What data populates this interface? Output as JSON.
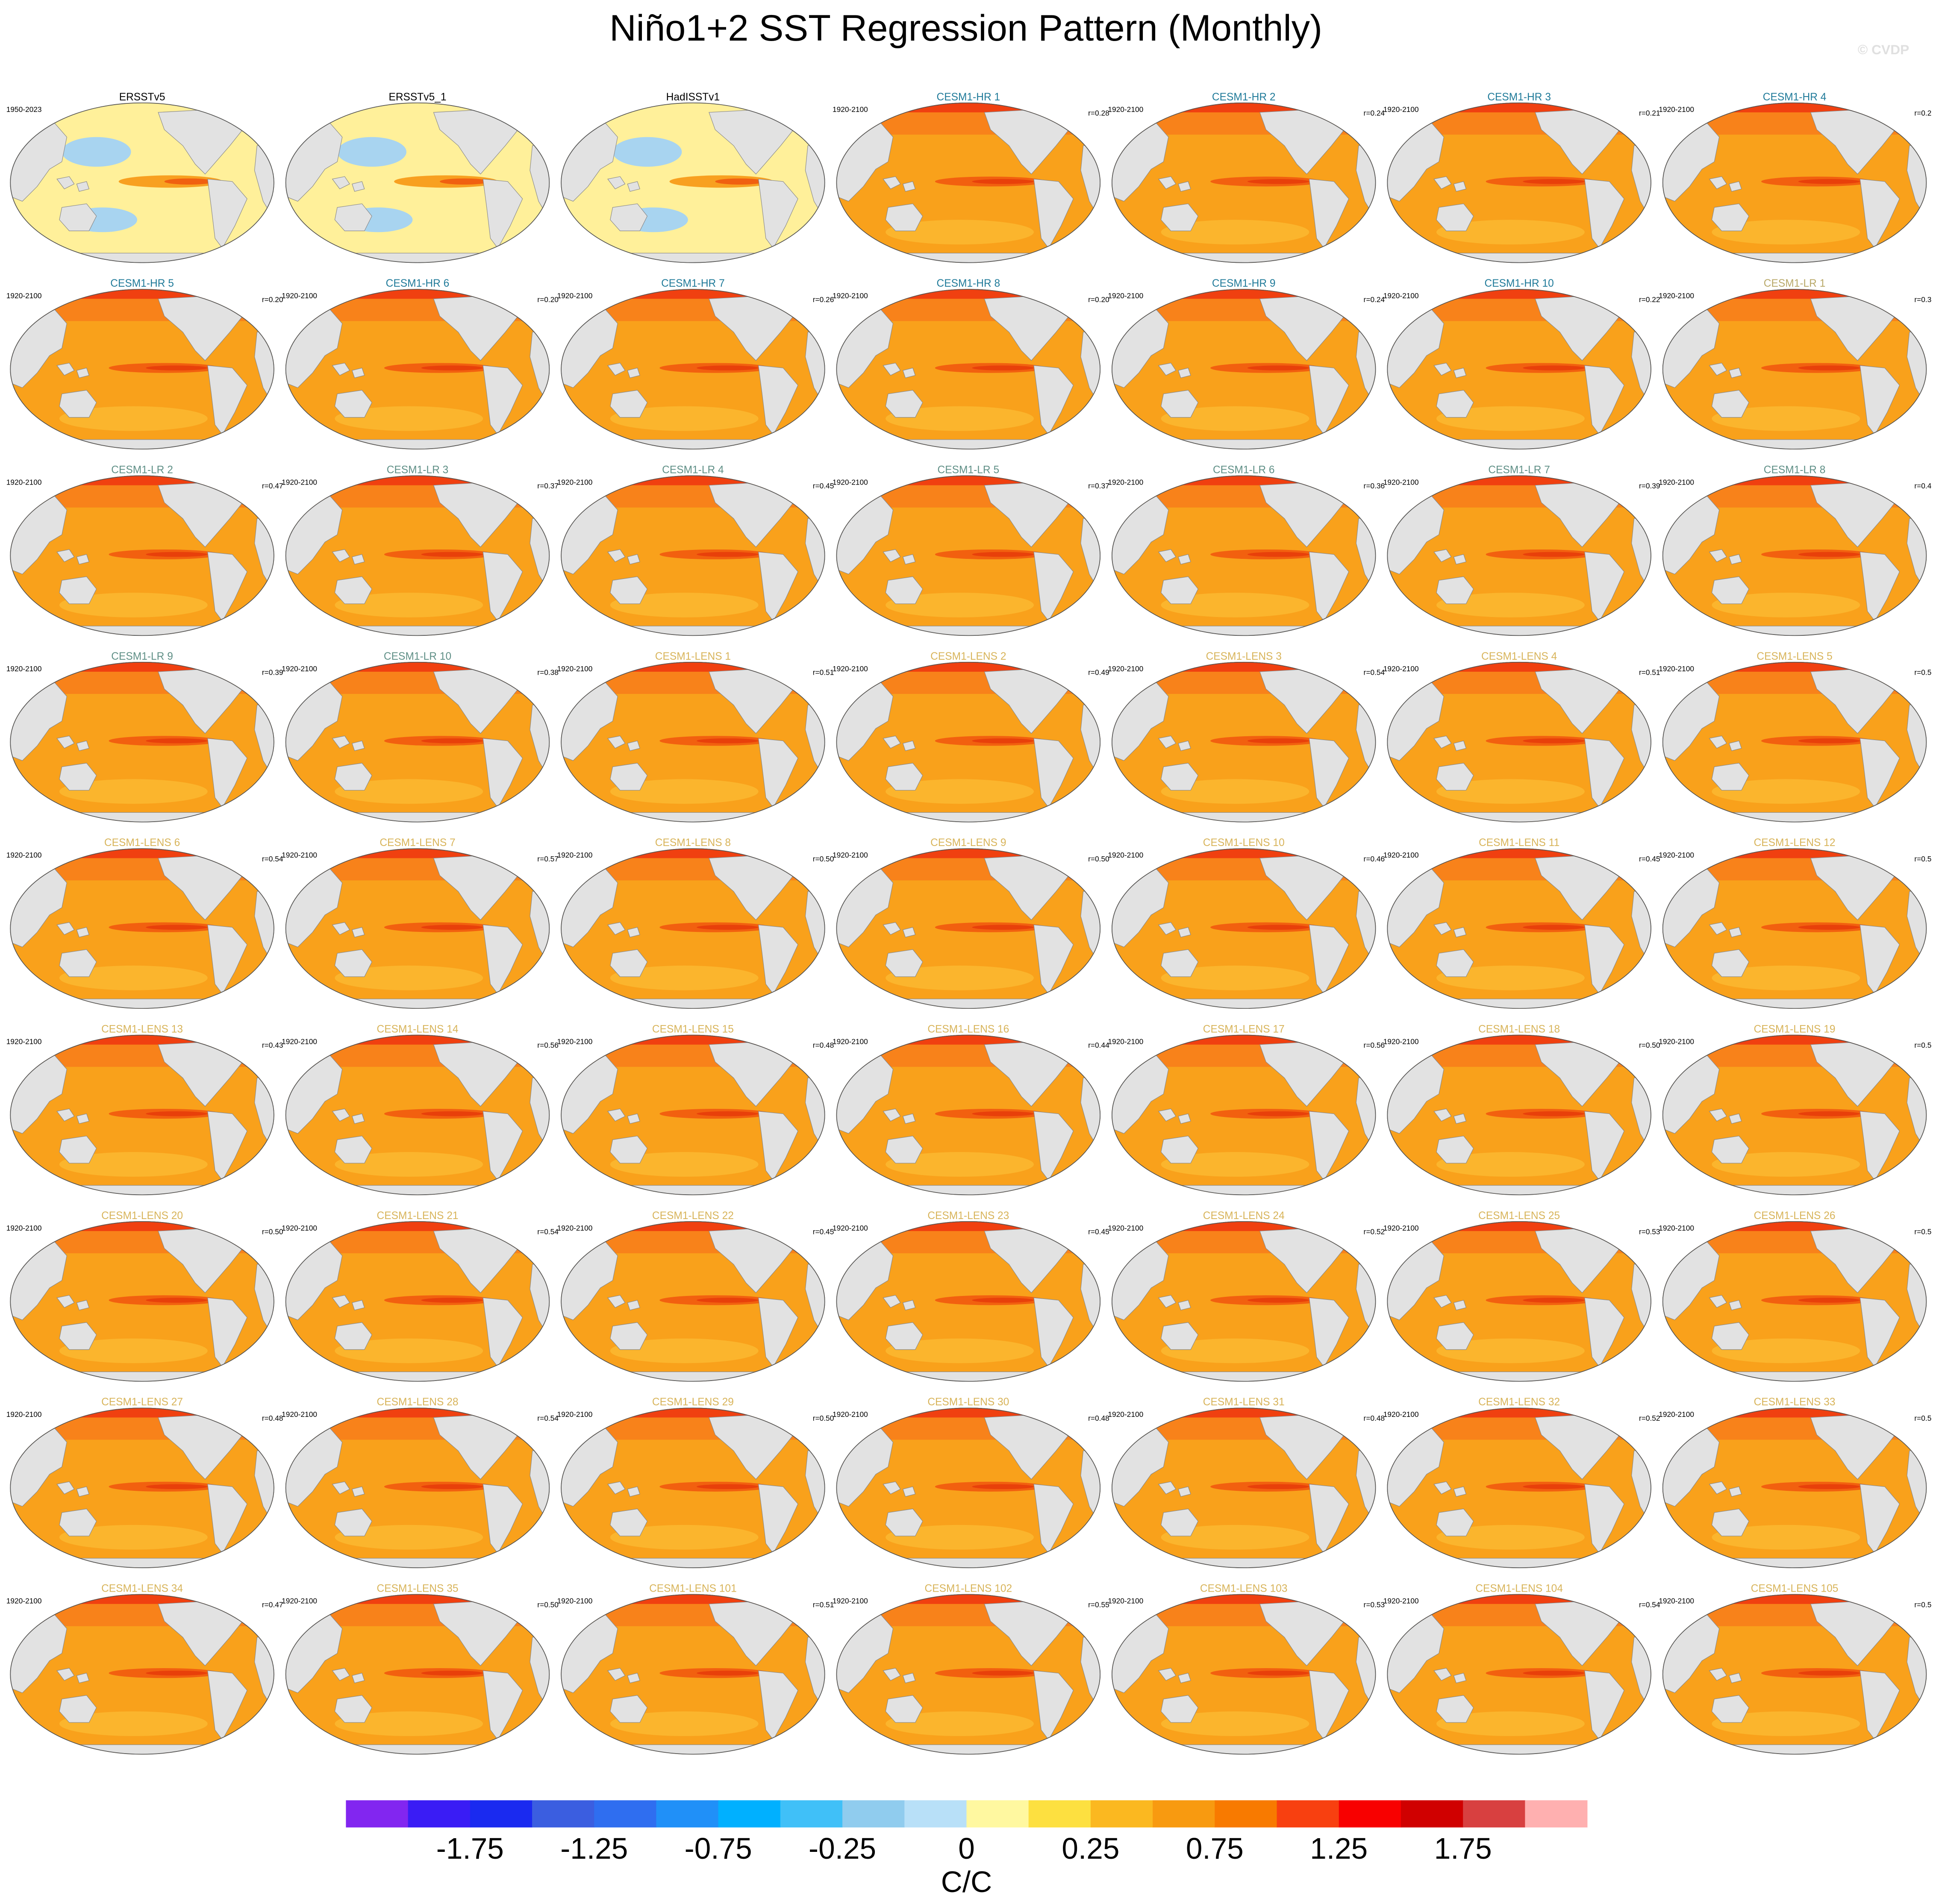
{
  "chart_data": {
    "type": "map-panels",
    "title": "Niño1+2 SST Regression Pattern (Monthly)",
    "credit": "© CVDP",
    "panels": [
      {
        "title": "ERSSTv5",
        "period": "1950-2023",
        "color": "#000000"
      },
      {
        "title": "ERSSTv5_1",
        "color": "#000000"
      },
      {
        "title": "HadISSTv1",
        "color": "#000000"
      },
      {
        "title": "CESM1-HR 1",
        "period": "1920-2100",
        "r": "r=0.28",
        "color": "#1f7a99"
      },
      {
        "title": "CESM1-HR 2",
        "period": "1920-2100",
        "r": "r=0.24",
        "color": "#1f7a99"
      },
      {
        "title": "CESM1-HR 3",
        "period": "1920-2100",
        "r": "r=0.21",
        "color": "#1f7a99"
      },
      {
        "title": "CESM1-HR 4",
        "period": "1920-2100",
        "r": "r=0.2",
        "color": "#1f7a99"
      },
      {
        "title": "CESM1-HR 5",
        "period": "1920-2100",
        "r": "r=0.20",
        "color": "#1f7a99"
      },
      {
        "title": "CESM1-HR 6",
        "period": "1920-2100",
        "r": "r=0.20",
        "color": "#1f7a99"
      },
      {
        "title": "CESM1-HR 7",
        "period": "1920-2100",
        "r": "r=0.26",
        "color": "#1f7a99"
      },
      {
        "title": "CESM1-HR 8",
        "period": "1920-2100",
        "r": "r=0.20",
        "color": "#1f7a99"
      },
      {
        "title": "CESM1-HR 9",
        "period": "1920-2100",
        "r": "r=0.24",
        "color": "#1f7a99"
      },
      {
        "title": "CESM1-HR 10",
        "period": "1920-2100",
        "r": "r=0.22",
        "color": "#1f7a99"
      },
      {
        "title": "CESM1-LR 1",
        "period": "1920-2100",
        "r": "r=0.3",
        "color": "#b8a868"
      },
      {
        "title": "CESM1-LR 2",
        "period": "1920-2100",
        "r": "r=0.47",
        "color": "#5f8f86"
      },
      {
        "title": "CESM1-LR 3",
        "period": "1920-2100",
        "r": "r=0.37",
        "color": "#5f8f86"
      },
      {
        "title": "CESM1-LR 4",
        "period": "1920-2100",
        "r": "r=0.45",
        "color": "#5f8f86"
      },
      {
        "title": "CESM1-LR 5",
        "period": "1920-2100",
        "r": "r=0.37",
        "color": "#5f8f86"
      },
      {
        "title": "CESM1-LR 6",
        "period": "1920-2100",
        "r": "r=0.36",
        "color": "#5f8f86"
      },
      {
        "title": "CESM1-LR 7",
        "period": "1920-2100",
        "r": "r=0.39",
        "color": "#5f8f86"
      },
      {
        "title": "CESM1-LR 8",
        "period": "1920-2100",
        "r": "r=0.4",
        "color": "#5f8f86"
      },
      {
        "title": "CESM1-LR 9",
        "period": "1920-2100",
        "r": "r=0.39",
        "color": "#5f8f86"
      },
      {
        "title": "CESM1-LR 10",
        "period": "1920-2100",
        "r": "r=0.38",
        "color": "#5f8f86"
      },
      {
        "title": "CESM1-LENS 1",
        "period": "1920-2100",
        "r": "r=0.51",
        "color": "#d8b45a"
      },
      {
        "title": "CESM1-LENS 2",
        "period": "1920-2100",
        "r": "r=0.49",
        "color": "#d8b45a"
      },
      {
        "title": "CESM1-LENS 3",
        "period": "1920-2100",
        "r": "r=0.54",
        "color": "#d8b45a"
      },
      {
        "title": "CESM1-LENS 4",
        "period": "1920-2100",
        "r": "r=0.51",
        "color": "#d8b45a"
      },
      {
        "title": "CESM1-LENS 5",
        "period": "1920-2100",
        "r": "r=0.5",
        "color": "#d8b45a"
      },
      {
        "title": "CESM1-LENS 6",
        "period": "1920-2100",
        "r": "r=0.54",
        "color": "#d8b45a"
      },
      {
        "title": "CESM1-LENS 7",
        "period": "1920-2100",
        "r": "r=0.57",
        "color": "#d8b45a"
      },
      {
        "title": "CESM1-LENS 8",
        "period": "1920-2100",
        "r": "r=0.50",
        "color": "#d8b45a"
      },
      {
        "title": "CESM1-LENS 9",
        "period": "1920-2100",
        "r": "r=0.50",
        "color": "#d8b45a"
      },
      {
        "title": "CESM1-LENS 10",
        "period": "1920-2100",
        "r": "r=0.46",
        "color": "#d8b45a"
      },
      {
        "title": "CESM1-LENS 11",
        "period": "1920-2100",
        "r": "r=0.45",
        "color": "#d8b45a"
      },
      {
        "title": "CESM1-LENS 12",
        "period": "1920-2100",
        "r": "r=0.5",
        "color": "#d8b45a"
      },
      {
        "title": "CESM1-LENS 13",
        "period": "1920-2100",
        "r": "r=0.43",
        "color": "#d8b45a"
      },
      {
        "title": "CESM1-LENS 14",
        "period": "1920-2100",
        "r": "r=0.56",
        "color": "#d8b45a"
      },
      {
        "title": "CESM1-LENS 15",
        "period": "1920-2100",
        "r": "r=0.48",
        "color": "#d8b45a"
      },
      {
        "title": "CESM1-LENS 16",
        "period": "1920-2100",
        "r": "r=0.44",
        "color": "#d8b45a"
      },
      {
        "title": "CESM1-LENS 17",
        "period": "1920-2100",
        "r": "r=0.56",
        "color": "#d8b45a"
      },
      {
        "title": "CESM1-LENS 18",
        "period": "1920-2100",
        "r": "r=0.50",
        "color": "#d8b45a"
      },
      {
        "title": "CESM1-LENS 19",
        "period": "1920-2100",
        "r": "r=0.5",
        "color": "#d8b45a"
      },
      {
        "title": "CESM1-LENS 20",
        "period": "1920-2100",
        "r": "r=0.50",
        "color": "#d8b45a"
      },
      {
        "title": "CESM1-LENS 21",
        "period": "1920-2100",
        "r": "r=0.54",
        "color": "#d8b45a"
      },
      {
        "title": "CESM1-LENS 22",
        "period": "1920-2100",
        "r": "r=0.45",
        "color": "#d8b45a"
      },
      {
        "title": "CESM1-LENS 23",
        "period": "1920-2100",
        "r": "r=0.45",
        "color": "#d8b45a"
      },
      {
        "title": "CESM1-LENS 24",
        "period": "1920-2100",
        "r": "r=0.52",
        "color": "#d8b45a"
      },
      {
        "title": "CESM1-LENS 25",
        "period": "1920-2100",
        "r": "r=0.53",
        "color": "#d8b45a"
      },
      {
        "title": "CESM1-LENS 26",
        "period": "1920-2100",
        "r": "r=0.5",
        "color": "#d8b45a"
      },
      {
        "title": "CESM1-LENS 27",
        "period": "1920-2100",
        "r": "r=0.48",
        "color": "#d8b45a"
      },
      {
        "title": "CESM1-LENS 28",
        "period": "1920-2100",
        "r": "r=0.54",
        "color": "#d8b45a"
      },
      {
        "title": "CESM1-LENS 29",
        "period": "1920-2100",
        "r": "r=0.50",
        "color": "#d8b45a"
      },
      {
        "title": "CESM1-LENS 30",
        "period": "1920-2100",
        "r": "r=0.48",
        "color": "#d8b45a"
      },
      {
        "title": "CESM1-LENS 31",
        "period": "1920-2100",
        "r": "r=0.48",
        "color": "#d8b45a"
      },
      {
        "title": "CESM1-LENS 32",
        "period": "1920-2100",
        "r": "r=0.52",
        "color": "#d8b45a"
      },
      {
        "title": "CESM1-LENS 33",
        "period": "1920-2100",
        "r": "r=0.5",
        "color": "#d8b45a"
      },
      {
        "title": "CESM1-LENS 34",
        "period": "1920-2100",
        "r": "r=0.47",
        "color": "#d8b45a"
      },
      {
        "title": "CESM1-LENS 35",
        "period": "1920-2100",
        "r": "r=0.50",
        "color": "#d8b45a"
      },
      {
        "title": "CESM1-LENS 101",
        "period": "1920-2100",
        "r": "r=0.51",
        "color": "#d8b45a"
      },
      {
        "title": "CESM1-LENS 102",
        "period": "1920-2100",
        "r": "r=0.55",
        "color": "#d8b45a"
      },
      {
        "title": "CESM1-LENS 103",
        "period": "1920-2100",
        "r": "r=0.53",
        "color": "#d8b45a"
      },
      {
        "title": "CESM1-LENS 104",
        "period": "1920-2100",
        "r": "r=0.54",
        "color": "#d8b45a"
      },
      {
        "title": "CESM1-LENS 105",
        "period": "1920-2100",
        "r": "r=0.5",
        "color": "#d8b45a"
      }
    ],
    "colorbar": {
      "colors": [
        "#8226f0",
        "#3a1cf5",
        "#1a2af0",
        "#3b5ee0",
        "#2f6ef0",
        "#2090f8",
        "#00b0ff",
        "#40c0f8",
        "#90ccee",
        "#b8e0f8",
        "#fff8a0",
        "#fde040",
        "#fbb820",
        "#f89a10",
        "#f87a00",
        "#f84010",
        "#f80000",
        "#d00000",
        "#d84040",
        "#ffb0b0"
      ],
      "ticks": [
        -1.75,
        -1.25,
        -0.75,
        -0.25,
        0,
        0.25,
        0.75,
        1.25,
        1.75
      ],
      "units": "C/C"
    }
  }
}
